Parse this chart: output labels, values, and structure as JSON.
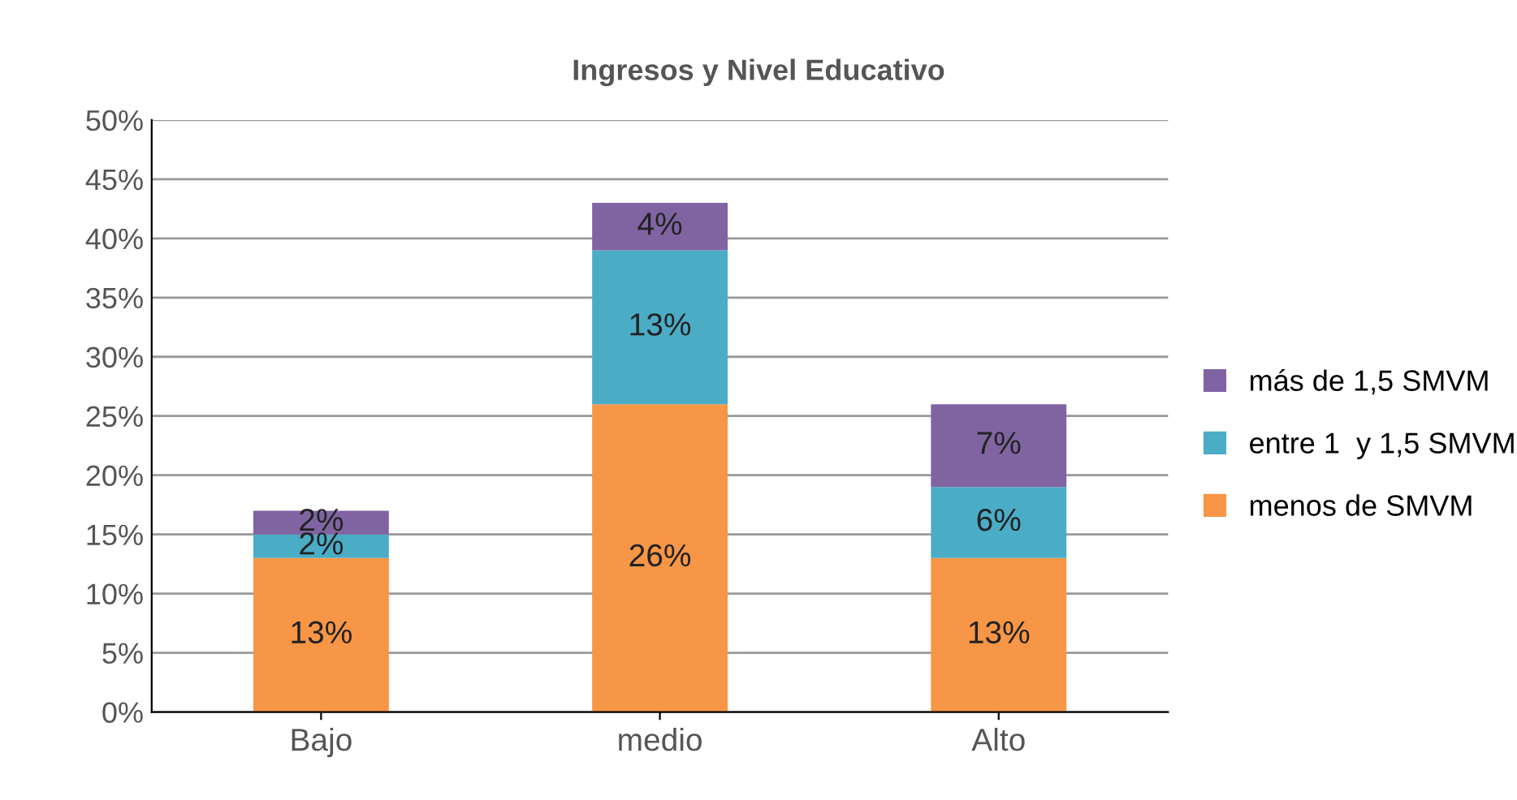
{
  "chart_data": {
    "type": "bar",
    "title": "Ingresos y Nivel Educativo",
    "categories": [
      "Bajo",
      "medio",
      "Alto"
    ],
    "stacked": true,
    "series": [
      {
        "name": "menos de SMVM",
        "color": "#f79646",
        "values": [
          13,
          26,
          13
        ],
        "value_labels": [
          "13%",
          "26%",
          "13%"
        ]
      },
      {
        "name": "entre 1  y 1,5 SMVM",
        "color": "#4bacc6",
        "values": [
          2,
          13,
          6
        ],
        "value_labels": [
          "2%",
          "13%",
          "6%"
        ]
      },
      {
        "name": "más de 1,5 SMVM",
        "color": "#8064a2",
        "values": [
          2,
          4,
          7
        ],
        "value_labels": [
          "2%",
          "4%",
          "7%"
        ]
      }
    ],
    "ylim": [
      0,
      50
    ],
    "yticks": [
      {
        "value": 0,
        "label": "0%"
      },
      {
        "value": 5,
        "label": "5%"
      },
      {
        "value": 10,
        "label": "10%"
      },
      {
        "value": 15,
        "label": "15%"
      },
      {
        "value": 20,
        "label": "20%"
      },
      {
        "value": 25,
        "label": "25%"
      },
      {
        "value": 30,
        "label": "30%"
      },
      {
        "value": 35,
        "label": "35%"
      },
      {
        "value": 40,
        "label": "40%"
      },
      {
        "value": 45,
        "label": "45%"
      },
      {
        "value": 50,
        "label": "50%"
      }
    ],
    "grid": "y",
    "legend": "right"
  }
}
